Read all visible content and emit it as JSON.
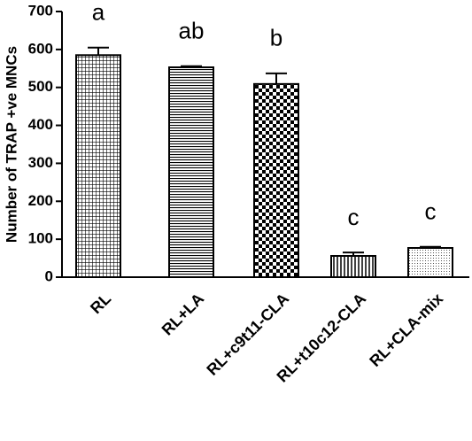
{
  "chart_data": {
    "type": "bar",
    "y_label": "Number of TRAP +ve MNCs",
    "categories": [
      "RL",
      "RL+LA",
      "RL+c9t11-CLA",
      "RL+t10c12-CLA",
      "RL+CLA-mix"
    ],
    "values": [
      585,
      553,
      509,
      56,
      77
    ],
    "errors": [
      20,
      3,
      28,
      9,
      3
    ],
    "annotations": [
      "a",
      "ab",
      "b",
      "c",
      "c"
    ],
    "color": "#000000",
    "ylim": [
      0,
      700
    ],
    "yticks": [
      0,
      100,
      200,
      300,
      400,
      500,
      600,
      700
    ],
    "grid": false
  }
}
